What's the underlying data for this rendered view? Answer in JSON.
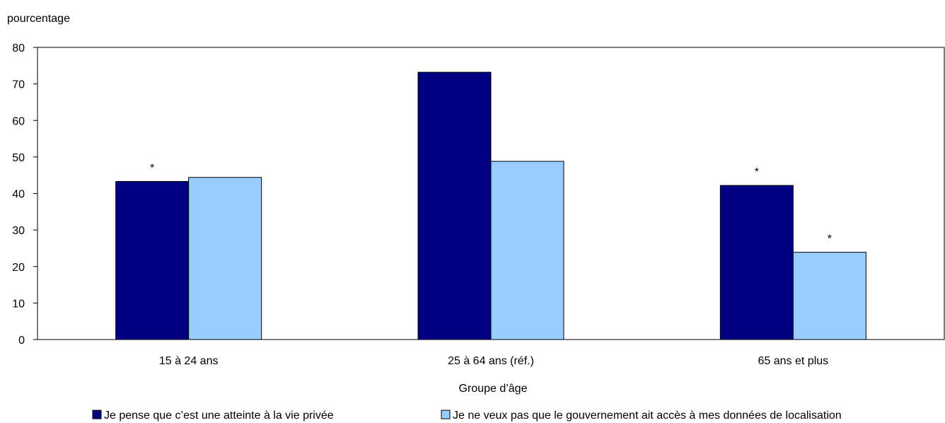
{
  "chart_data": {
    "type": "bar",
    "ylabel": "pourcentage",
    "xlabel": "Groupe d’âge",
    "ylim": [
      0,
      80
    ],
    "yticks": [
      0,
      10,
      20,
      30,
      40,
      50,
      60,
      70,
      80
    ],
    "grid": false,
    "legend": "bottom",
    "categories": [
      "15 à 24 ans",
      "25 à 64 ans (réf.)",
      "65 ans et plus"
    ],
    "series": [
      {
        "name": "Je pense que c’est une atteinte à la vie privée",
        "color": "#000080",
        "values": [
          43.3,
          73.2,
          42.2
        ],
        "annotations": [
          "*",
          "",
          "*"
        ]
      },
      {
        "name": "Je ne veux pas que le gouvernement ait accès à mes données de localisation",
        "color": "#99ccff",
        "values": [
          44.4,
          48.8,
          23.9
        ],
        "annotations": [
          "",
          "",
          "*"
        ]
      }
    ]
  }
}
